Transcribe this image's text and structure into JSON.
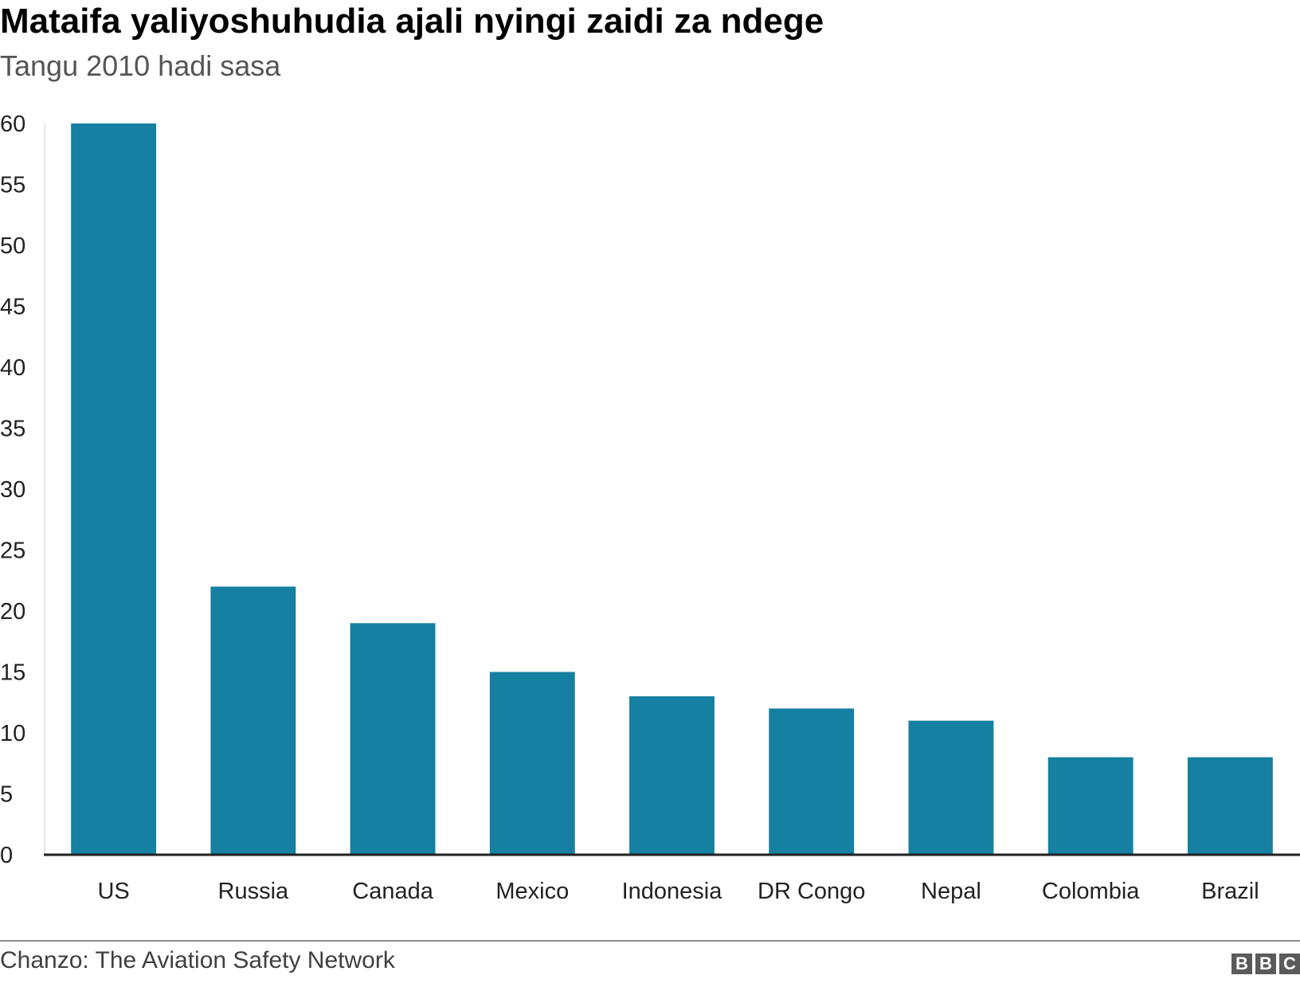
{
  "chart_data": {
    "type": "bar",
    "title": "Mataifa yaliyoshuhudia ajali nyingi zaidi za ndege",
    "subtitle": "Tangu 2010 hadi sasa",
    "categories": [
      "US",
      "Russia",
      "Canada",
      "Mexico",
      "Indonesia",
      "DR Congo",
      "Nepal",
      "Colombia",
      "Brazil"
    ],
    "values": [
      60,
      22,
      19,
      15,
      13,
      12,
      11,
      8,
      8
    ],
    "ylim": [
      0,
      60
    ],
    "yticks": [
      0,
      5,
      10,
      15,
      20,
      25,
      30,
      35,
      40,
      45,
      50,
      55,
      60
    ],
    "xlabel": "",
    "ylabel": "",
    "grid": false,
    "bar_color": "#1580a1",
    "source": "Chanzo: The Aviation Safety Network"
  },
  "branding": {
    "logo_letters": [
      "B",
      "B",
      "C"
    ]
  }
}
